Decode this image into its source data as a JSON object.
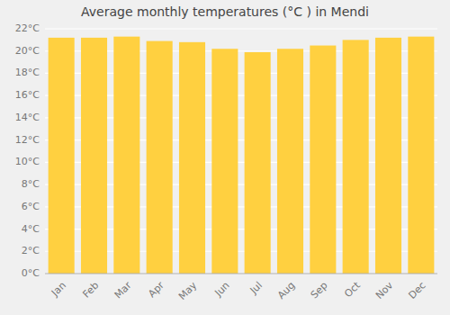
{
  "chart_data": {
    "type": "bar",
    "title": "Average monthly temperatures (°C ) in Mendi",
    "categories": [
      "Jan",
      "Feb",
      "Mar",
      "Apr",
      "May",
      "Jun",
      "Jul",
      "Aug",
      "Sep",
      "Oct",
      "Nov",
      "Dec"
    ],
    "values": [
      21.2,
      21.2,
      21.3,
      20.9,
      20.8,
      20.2,
      19.9,
      20.2,
      20.5,
      21.0,
      21.2,
      21.3
    ],
    "color": "#FFD040",
    "ylim": [
      0,
      22
    ],
    "yticks": [
      {
        "value": 0,
        "label": "0°C"
      },
      {
        "value": 2,
        "label": "2°C"
      },
      {
        "value": 4,
        "label": "4°C"
      },
      {
        "value": 6,
        "label": "6°C"
      },
      {
        "value": 8,
        "label": "8°C"
      },
      {
        "value": 10,
        "label": "10°C"
      },
      {
        "value": 12,
        "label": "12°C"
      },
      {
        "value": 14,
        "label": "14°C"
      },
      {
        "value": 16,
        "label": "16°C"
      },
      {
        "value": 18,
        "label": "18°C"
      },
      {
        "value": 20,
        "label": "20°C"
      },
      {
        "value": 22,
        "label": "22°C"
      }
    ],
    "grid": true
  }
}
